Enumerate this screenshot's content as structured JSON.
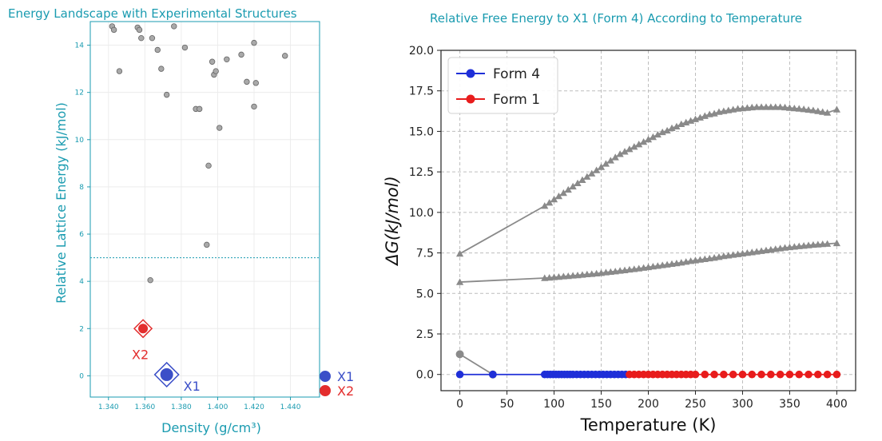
{
  "chart_data": [
    {
      "type": "scatter",
      "title": "Energy Landscape with Experimental Structures",
      "xlabel": "Density (g/cm³)",
      "ylabel": "Relative Lattice Energy (kJ/mol)",
      "xlim": [
        1.33,
        1.456
      ],
      "ylim": [
        -0.9,
        15.0
      ],
      "xticks": [
        1.34,
        1.36,
        1.38,
        1.4,
        1.42,
        1.44
      ],
      "xtick_labels": [
        "1.340",
        "1.360",
        "1.380",
        "1.400",
        "1.420",
        "1.440"
      ],
      "yticks": [
        0,
        2,
        4,
        6,
        8,
        10,
        12,
        14
      ],
      "ytick_labels": [
        "0",
        "2",
        "4",
        "6",
        "8",
        "10",
        "12",
        "14"
      ],
      "cutoff_line": 5.0,
      "grid": true,
      "colors": {
        "axis": "#1a9bb0",
        "points": "#a9a9a9",
        "x1": "#3b4fc8",
        "x2": "#e32d2d"
      },
      "points": [
        {
          "x": 1.342,
          "y": 14.8
        },
        {
          "x": 1.343,
          "y": 14.65
        },
        {
          "x": 1.346,
          "y": 12.9
        },
        {
          "x": 1.356,
          "y": 14.75
        },
        {
          "x": 1.357,
          "y": 14.65
        },
        {
          "x": 1.358,
          "y": 14.3
        },
        {
          "x": 1.364,
          "y": 14.3
        },
        {
          "x": 1.367,
          "y": 13.8
        },
        {
          "x": 1.369,
          "y": 13.0
        },
        {
          "x": 1.372,
          "y": 11.9
        },
        {
          "x": 1.376,
          "y": 14.8
        },
        {
          "x": 1.382,
          "y": 13.9
        },
        {
          "x": 1.388,
          "y": 11.3
        },
        {
          "x": 1.39,
          "y": 11.3
        },
        {
          "x": 1.394,
          "y": 5.55
        },
        {
          "x": 1.395,
          "y": 8.9
        },
        {
          "x": 1.397,
          "y": 13.3
        },
        {
          "x": 1.398,
          "y": 12.75
        },
        {
          "x": 1.399,
          "y": 12.9
        },
        {
          "x": 1.401,
          "y": 10.5
        },
        {
          "x": 1.405,
          "y": 13.4
        },
        {
          "x": 1.413,
          "y": 13.6
        },
        {
          "x": 1.416,
          "y": 12.45
        },
        {
          "x": 1.42,
          "y": 14.1
        },
        {
          "x": 1.42,
          "y": 11.4
        },
        {
          "x": 1.421,
          "y": 12.4
        },
        {
          "x": 1.437,
          "y": 13.55
        },
        {
          "x": 1.363,
          "y": 4.05
        }
      ],
      "highlights": [
        {
          "label": "X1",
          "x": 1.372,
          "y": 0.05,
          "color": "#3b4fc8"
        },
        {
          "label": "X2",
          "x": 1.359,
          "y": 2.0,
          "color": "#e32d2d"
        }
      ],
      "legend": [
        {
          "label": "X1",
          "color": "#3b4fc8"
        },
        {
          "label": "X2",
          "color": "#e32d2d"
        }
      ],
      "legend_position": "bottom-right outside"
    },
    {
      "type": "line",
      "title": "Relative Free Energy to X1 (Form 4) According to Temperature",
      "xlabel": "Temperature (K)",
      "ylabel": "ΔG(kJ/mol)",
      "xlim": [
        -20,
        420
      ],
      "ylim": [
        -1.0,
        20.0
      ],
      "xticks": [
        0,
        50,
        100,
        150,
        200,
        250,
        300,
        350,
        400
      ],
      "xtick_labels": [
        "0",
        "50",
        "100",
        "150",
        "200",
        "250",
        "300",
        "350",
        "400"
      ],
      "yticks": [
        0,
        2.5,
        5,
        7.5,
        10,
        12.5,
        15,
        17.5,
        20
      ],
      "ytick_labels": [
        "0.0",
        "2.5",
        "5.0",
        "7.5",
        "10.0",
        "12.5",
        "15.0",
        "17.5",
        "20.0"
      ],
      "grid": true,
      "legend_position": "top-left",
      "legend": [
        {
          "label": "Form 4",
          "color": "#1f2fd8"
        },
        {
          "label": "Form 1",
          "color": "#e81c1c"
        }
      ],
      "series": [
        {
          "name": "Form 4",
          "color": "#1f2fd8",
          "marker": "circle",
          "x": [
            0,
            35,
            90,
            93,
            96,
            99,
            102,
            105,
            108,
            111,
            114,
            117,
            120,
            124,
            128,
            132,
            136,
            140,
            144,
            148,
            152,
            156,
            160,
            164,
            168,
            172,
            176
          ],
          "y": [
            0,
            0,
            0,
            0,
            0,
            0,
            0,
            0,
            0,
            0,
            0,
            0,
            0,
            0,
            0,
            0,
            0,
            0,
            0,
            0,
            0,
            0,
            0,
            0,
            0,
            0,
            0
          ]
        },
        {
          "name": "Form 1",
          "color": "#e81c1c",
          "marker": "circle",
          "x": [
            180,
            185,
            190,
            195,
            200,
            205,
            210,
            215,
            220,
            225,
            230,
            235,
            240,
            245,
            250,
            260,
            270,
            280,
            290,
            300,
            310,
            320,
            330,
            340,
            350,
            360,
            370,
            380,
            390,
            400
          ],
          "y": [
            0,
            0,
            0,
            0,
            0,
            0,
            0,
            0,
            0,
            0,
            0,
            0,
            0,
            0,
            0,
            0,
            0,
            0,
            0,
            0,
            0,
            0,
            0,
            0,
            0,
            0,
            0,
            0,
            0,
            0
          ]
        },
        {
          "color": "#8a8a8a",
          "marker": "circle",
          "x": [
            0,
            35
          ],
          "y": [
            1.25,
            0.0
          ]
        },
        {
          "color": "#8a8a8a",
          "marker": "triangle",
          "x": [
            0,
            90,
            95,
            100,
            105,
            110,
            115,
            120,
            125,
            130,
            135,
            140,
            145,
            150,
            155,
            160,
            165,
            170,
            175,
            180,
            185,
            190,
            195,
            200,
            205,
            210,
            215,
            220,
            225,
            230,
            235,
            240,
            245,
            250,
            255,
            260,
            265,
            270,
            275,
            280,
            285,
            290,
            295,
            300,
            305,
            310,
            315,
            320,
            325,
            330,
            335,
            340,
            345,
            350,
            355,
            360,
            365,
            370,
            375,
            380,
            385,
            390,
            400
          ],
          "y": [
            7.45,
            10.4,
            10.6,
            10.8,
            11.0,
            11.2,
            11.4,
            11.6,
            11.8,
            12.0,
            12.2,
            12.4,
            12.6,
            12.8,
            13.0,
            13.2,
            13.4,
            13.6,
            13.75,
            13.9,
            14.05,
            14.2,
            14.35,
            14.5,
            14.65,
            14.8,
            14.95,
            15.05,
            15.2,
            15.3,
            15.45,
            15.55,
            15.65,
            15.75,
            15.85,
            15.95,
            16.05,
            16.1,
            16.2,
            16.25,
            16.3,
            16.35,
            16.4,
            16.42,
            16.45,
            16.48,
            16.5,
            16.5,
            16.5,
            16.5,
            16.5,
            16.5,
            16.48,
            16.45,
            16.42,
            16.4,
            16.37,
            16.33,
            16.3,
            16.25,
            16.2,
            16.15,
            16.35
          ]
        },
        {
          "color": "#8a8a8a",
          "marker": "triangle",
          "x": [
            0,
            90,
            95,
            100,
            105,
            110,
            115,
            120,
            125,
            130,
            135,
            140,
            145,
            150,
            155,
            160,
            165,
            170,
            175,
            180,
            185,
            190,
            195,
            200,
            205,
            210,
            215,
            220,
            225,
            230,
            235,
            240,
            245,
            250,
            255,
            260,
            265,
            270,
            275,
            280,
            285,
            290,
            295,
            300,
            305,
            310,
            315,
            320,
            325,
            330,
            335,
            340,
            345,
            350,
            355,
            360,
            365,
            370,
            375,
            380,
            385,
            390,
            400
          ],
          "y": [
            5.7,
            5.95,
            5.97,
            6.0,
            6.02,
            6.05,
            6.07,
            6.1,
            6.12,
            6.15,
            6.18,
            6.2,
            6.23,
            6.26,
            6.3,
            6.33,
            6.36,
            6.4,
            6.43,
            6.47,
            6.5,
            6.54,
            6.58,
            6.62,
            6.66,
            6.7,
            6.74,
            6.78,
            6.82,
            6.86,
            6.9,
            6.95,
            7.0,
            7.04,
            7.08,
            7.12,
            7.16,
            7.2,
            7.25,
            7.3,
            7.34,
            7.38,
            7.42,
            7.46,
            7.5,
            7.54,
            7.58,
            7.62,
            7.66,
            7.7,
            7.74,
            7.78,
            7.82,
            7.85,
            7.88,
            7.91,
            7.94,
            7.97,
            8.0,
            8.02,
            8.04,
            8.06,
            8.1
          ]
        }
      ]
    }
  ]
}
